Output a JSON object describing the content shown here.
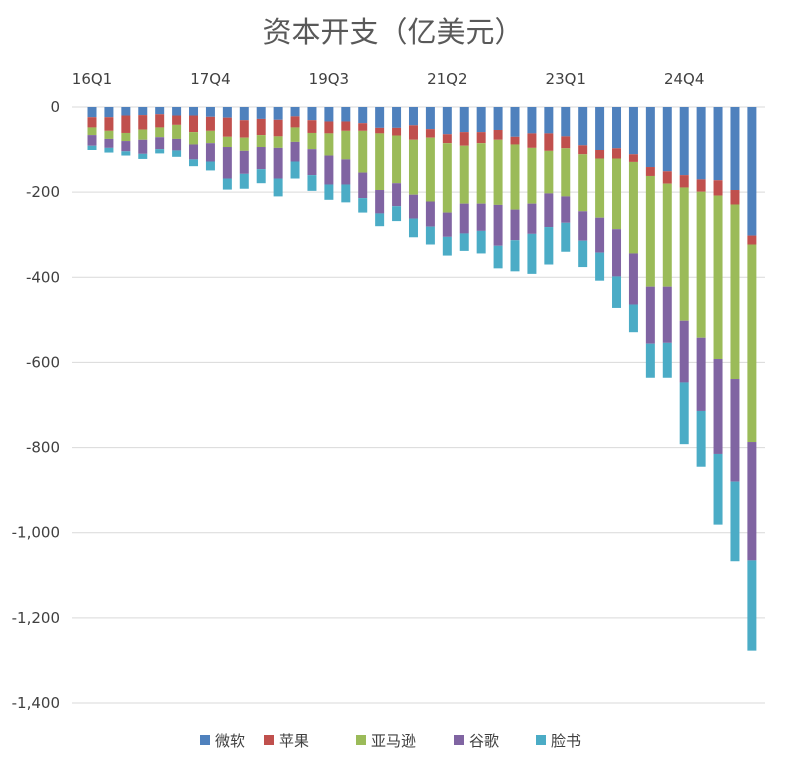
{
  "chart_data": {
    "type": "bar",
    "stacked": true,
    "title": "资本开支（亿美元）",
    "xlabel": "",
    "ylabel": "",
    "ylim": [
      -1400,
      0
    ],
    "yticks": [
      0,
      -200,
      -400,
      -600,
      -800,
      -1000,
      -1200,
      -1400
    ],
    "ytick_labels": [
      "0",
      "-200",
      "-400",
      "-600",
      "-800",
      "-1,000",
      "-1,200",
      "-1,400"
    ],
    "xtick_labels": [
      "16Q1",
      "17Q4",
      "19Q3",
      "21Q2",
      "23Q1",
      "24Q4"
    ],
    "xtick_every": 7,
    "xaxis_position": "top",
    "grid": true,
    "legend_position": "bottom",
    "categories": [
      "16Q1",
      "16Q2",
      "16Q3",
      "16Q4",
      "17Q1",
      "17Q2",
      "17Q3",
      "17Q4",
      "18Q1",
      "18Q2",
      "18Q3",
      "18Q4",
      "19Q1",
      "19Q2",
      "19Q3",
      "19Q4",
      "20Q1",
      "20Q2",
      "20Q3",
      "20Q4",
      "21Q1",
      "21Q2",
      "21Q3",
      "21Q4",
      "22Q1",
      "22Q2",
      "22Q3",
      "22Q4",
      "23Q1",
      "23Q2",
      "23Q3",
      "23Q4",
      "24Q1",
      "24Q2",
      "24Q3",
      "24Q4",
      "25Q1",
      "25Q2",
      "25Q3",
      "25Q4"
    ],
    "series": [
      {
        "name": "微软",
        "color": "#4F81BD",
        "values": [
          -24,
          -24,
          -20,
          -19,
          -17,
          -20,
          -20,
          -23,
          -25,
          -31,
          -28,
          -30,
          -22,
          -31,
          -34,
          -34,
          -38,
          -49,
          -49,
          -43,
          -52,
          -64,
          -59,
          -59,
          -54,
          -70,
          -62,
          -62,
          -69,
          -90,
          -101,
          -97,
          -111,
          -141,
          -151,
          -160,
          -170,
          -172,
          -195,
          -302
        ]
      },
      {
        "name": "苹果",
        "color": "#C0504D",
        "values": [
          -24,
          -32,
          -41,
          -34,
          -31,
          -22,
          -39,
          -33,
          -45,
          -41,
          -38,
          -39,
          -26,
          -30,
          -28,
          -22,
          -18,
          -13,
          -18,
          -34,
          -20,
          -21,
          -32,
          -26,
          -23,
          -18,
          -34,
          -41,
          -28,
          -21,
          -20,
          -24,
          -18,
          -21,
          -29,
          -29,
          -29,
          -36,
          -34,
          -21
        ]
      },
      {
        "name": "亚马逊",
        "color": "#9BBB59",
        "values": [
          -18,
          -19,
          -19,
          -24,
          -23,
          -33,
          -29,
          -29,
          -24,
          -31,
          -28,
          -27,
          -34,
          -38,
          -52,
          -67,
          -98,
          -133,
          -112,
          -129,
          -150,
          -163,
          -136,
          -142,
          -153,
          -153,
          -131,
          -100,
          -113,
          -134,
          -139,
          -166,
          -215,
          -260,
          -242,
          -313,
          -343,
          -384,
          -410,
          -464
        ]
      },
      {
        "name": "谷歌",
        "color": "#8064A2",
        "values": [
          -25,
          -21,
          -24,
          -33,
          -28,
          -27,
          -35,
          -43,
          -74,
          -54,
          -52,
          -72,
          -46,
          -61,
          -68,
          -59,
          -60,
          -55,
          -54,
          -56,
          -59,
          -57,
          -70,
          -64,
          -96,
          -72,
          -71,
          -79,
          -62,
          -69,
          -82,
          -111,
          -120,
          -134,
          -132,
          -145,
          -172,
          -223,
          -241,
          -278
        ]
      },
      {
        "name": "脸书",
        "color": "#4BACC6",
        "values": [
          -10,
          -11,
          -10,
          -12,
          -10,
          -15,
          -16,
          -21,
          -26,
          -35,
          -33,
          -42,
          -40,
          -37,
          -36,
          -42,
          -34,
          -30,
          -35,
          -44,
          -42,
          -44,
          -41,
          -53,
          -53,
          -73,
          -94,
          -88,
          -68,
          -62,
          -66,
          -74,
          -65,
          -80,
          -82,
          -145,
          -131,
          -166,
          -187,
          -212
        ]
      }
    ]
  }
}
